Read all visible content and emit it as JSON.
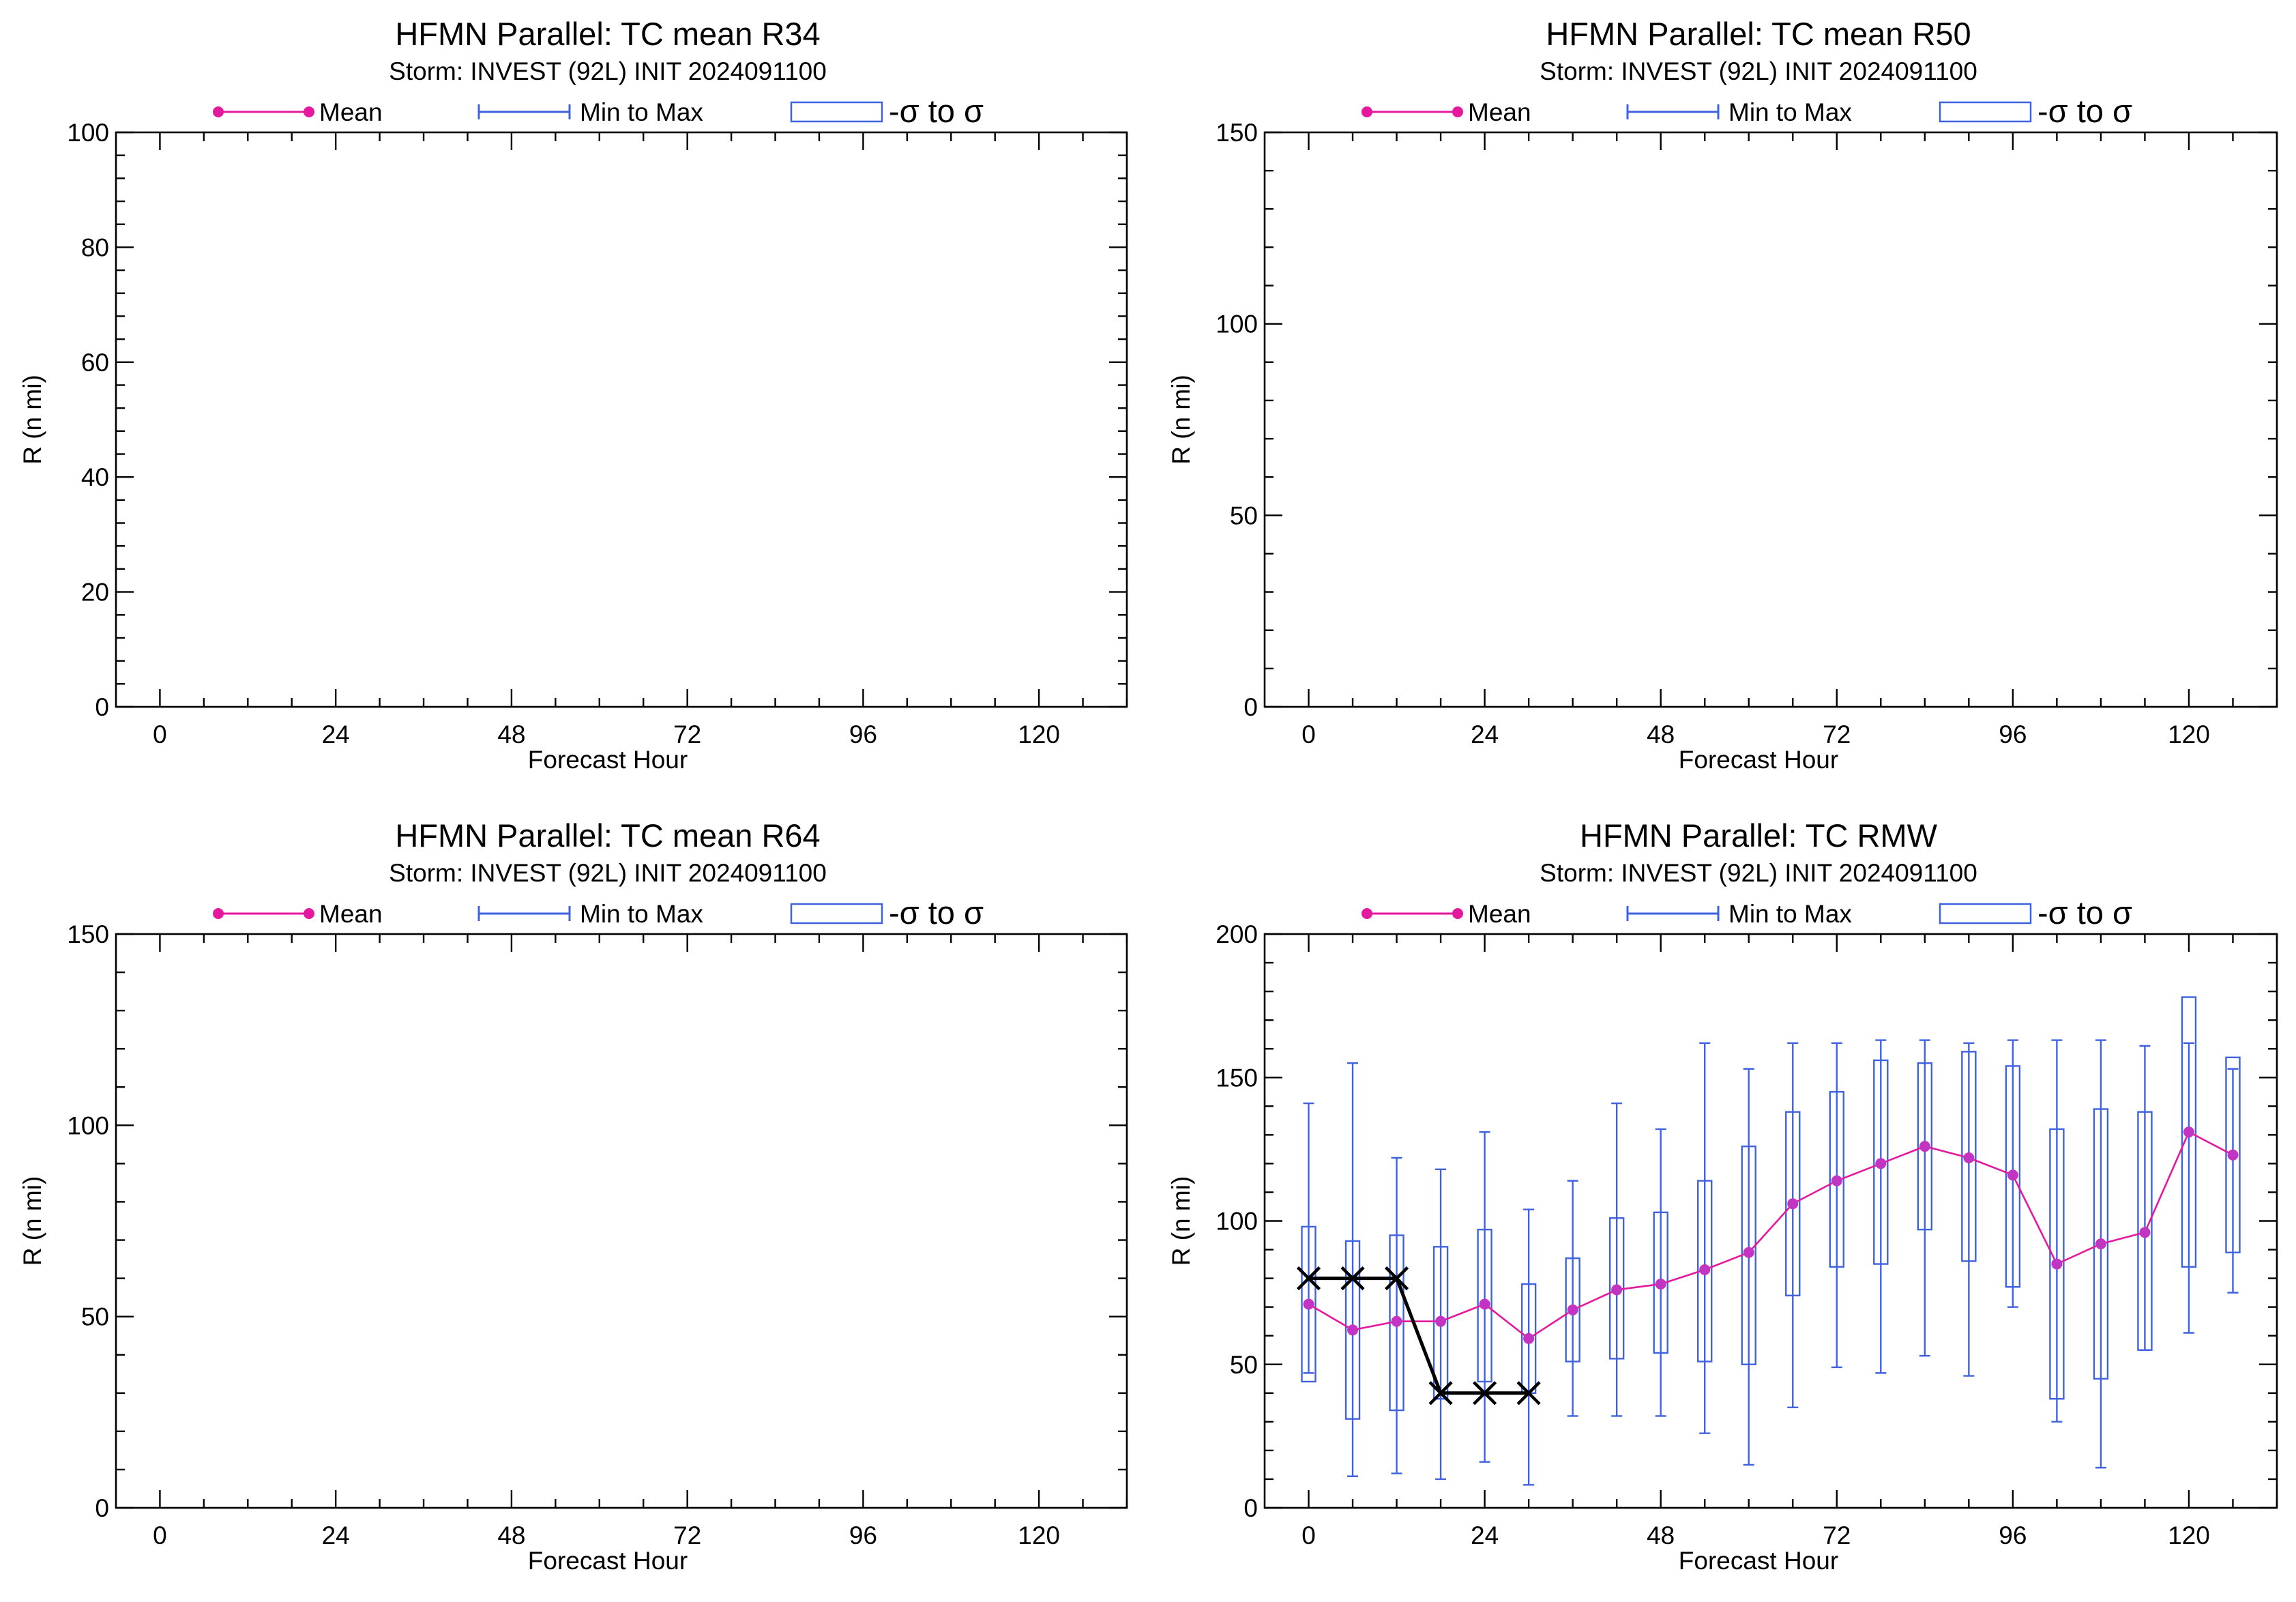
{
  "colors": {
    "mean": "#e4199e",
    "mean_marker": "#c234c2",
    "minmax": "#3f62e0",
    "sigma_box": "#3f62e0",
    "best_track": "#000000"
  },
  "legend": {
    "mean_label": "Mean",
    "minmax_label": "Min to Max",
    "sigma_label": "-σ to σ"
  },
  "chart_data": [
    {
      "type": "line",
      "title": "HFMN Parallel: TC mean R34",
      "subtitle": "Storm: INVEST (92L) INIT 2024091100",
      "xlabel": "Forecast Hour",
      "ylabel": "R (n mi)",
      "xlim": [
        -6,
        132
      ],
      "ylim": [
        0,
        100
      ],
      "xticks": [
        0,
        24,
        48,
        72,
        96,
        120
      ],
      "yticks": [
        0,
        20,
        40,
        60,
        80,
        100
      ],
      "legend_position": "top",
      "series": []
    },
    {
      "type": "line",
      "title": "HFMN Parallel: TC mean R50",
      "subtitle": "Storm: INVEST (92L) INIT 2024091100",
      "xlabel": "Forecast Hour",
      "ylabel": "R (n mi)",
      "xlim": [
        -6,
        132
      ],
      "ylim": [
        0,
        150
      ],
      "xticks": [
        0,
        24,
        48,
        72,
        96,
        120
      ],
      "yticks": [
        0,
        50,
        100,
        150
      ],
      "legend_position": "top",
      "series": []
    },
    {
      "type": "line",
      "title": "HFMN Parallel: TC mean R64",
      "subtitle": "Storm: INVEST (92L) INIT 2024091100",
      "xlabel": "Forecast Hour",
      "ylabel": "R (n mi)",
      "xlim": [
        -6,
        132
      ],
      "ylim": [
        0,
        150
      ],
      "xticks": [
        0,
        24,
        48,
        72,
        96,
        120
      ],
      "yticks": [
        0,
        50,
        100,
        150
      ],
      "legend_position": "top",
      "series": []
    },
    {
      "type": "line",
      "title": "HFMN Parallel: TC RMW",
      "subtitle": "Storm: INVEST (92L) INIT 2024091100",
      "xlabel": "Forecast Hour",
      "ylabel": "R (n mi)",
      "xlim": [
        -6,
        132
      ],
      "ylim": [
        0,
        200
      ],
      "xticks": [
        0,
        24,
        48,
        72,
        96,
        120
      ],
      "yticks": [
        0,
        50,
        100,
        150,
        200
      ],
      "legend_position": "top",
      "x": [
        0,
        6,
        12,
        18,
        24,
        30,
        36,
        42,
        48,
        54,
        60,
        66,
        72,
        78,
        84,
        90,
        96,
        102,
        108,
        114,
        120,
        126
      ],
      "mean": [
        71,
        62,
        65,
        65,
        71,
        59,
        69,
        76,
        78,
        83,
        89,
        106,
        114,
        120,
        126,
        122,
        116,
        85,
        92,
        96,
        131,
        123
      ],
      "min": [
        47,
        11,
        12,
        10,
        16,
        8,
        32,
        32,
        32,
        26,
        15,
        35,
        49,
        47,
        53,
        46,
        70,
        30,
        14,
        55,
        61,
        75
      ],
      "max": [
        141,
        155,
        122,
        118,
        131,
        104,
        114,
        141,
        132,
        162,
        153,
        162,
        162,
        163,
        163,
        162,
        163,
        163,
        163,
        161,
        162,
        153
      ],
      "sigma_low": [
        44,
        31,
        34,
        38,
        44,
        40,
        51,
        52,
        54,
        51,
        50,
        74,
        84,
        85,
        97,
        86,
        77,
        38,
        45,
        55,
        84,
        89
      ],
      "sigma_high": [
        98,
        93,
        95,
        91,
        97,
        78,
        87,
        101,
        103,
        114,
        126,
        138,
        145,
        156,
        155,
        159,
        154,
        132,
        139,
        138,
        178,
        157
      ],
      "best_track": {
        "x": [
          0,
          6,
          12,
          18,
          24,
          30
        ],
        "y": [
          80,
          80,
          80,
          40,
          40,
          40
        ]
      }
    }
  ]
}
